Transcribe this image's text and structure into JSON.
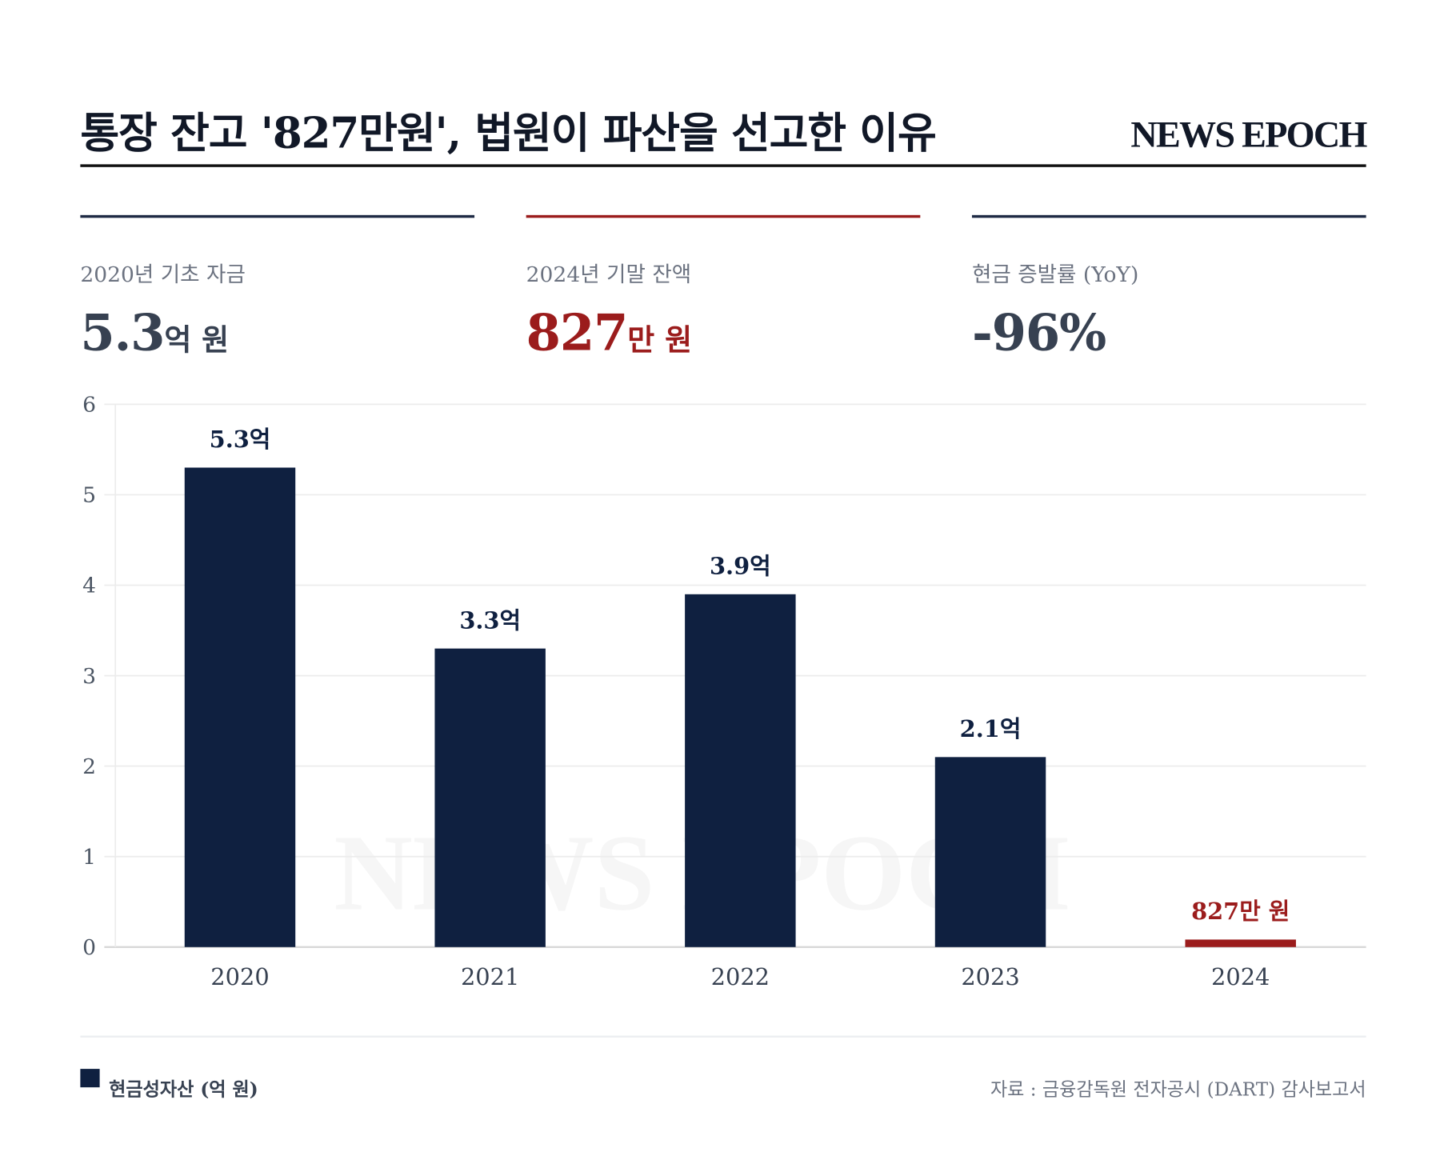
{
  "header": {
    "title": "통장 잔고 '827만원', 법원이 파산을 선고한 이유",
    "logo": "NEWS EPOCH"
  },
  "cards": [
    {
      "label": "2020년 기초 자금",
      "value": "5.3",
      "unit": "억 원"
    },
    {
      "label": "2024년 기말 잔액",
      "value": "827",
      "unit": "만 원"
    },
    {
      "label": "현금 증발률 (YoY)",
      "value": "-96%",
      "unit": ""
    }
  ],
  "colors": {
    "navy": "#0f2040",
    "red": "#9b1c1c",
    "grid": "#ececec"
  },
  "chart_data": {
    "type": "bar",
    "categories": [
      "2020",
      "2021",
      "2022",
      "2023",
      "2024"
    ],
    "values": [
      5.3,
      3.3,
      3.9,
      2.1,
      0.0827
    ],
    "labels": [
      "5.3억",
      "3.3억",
      "3.9억",
      "2.1억",
      "827만 원"
    ],
    "highlight": [
      false,
      false,
      false,
      false,
      true
    ],
    "ylim": [
      0,
      6
    ],
    "yticks": [
      0,
      1,
      2,
      3,
      4,
      5,
      6
    ],
    "grid": true,
    "watermark": "NEWS EPOCH",
    "legend": "현금성자산 (억 원)",
    "legend_position": "bottom-left"
  },
  "footer": {
    "legend": "현금성자산 (억 원)",
    "source": "자료 : 금융감독원 전자공시 (DART) 감사보고서"
  }
}
